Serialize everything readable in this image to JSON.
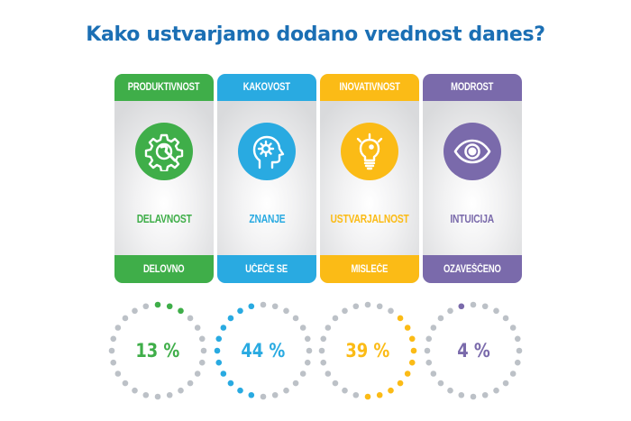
{
  "title": "Kako ustvarjamo dodano vrednost danes?",
  "colors": {
    "title": "#1b6fb4",
    "inactive_dot": "#bcc1c7"
  },
  "cards": [
    {
      "header": "PRODUKTIVNOST",
      "icon": "gear-wrench-icon",
      "middle": "DELAVNOST",
      "footer": "DELOVNO",
      "color": "#3fae49",
      "percent_label": "13 %",
      "percent": 13,
      "active_dots": [
        0,
        1,
        2
      ]
    },
    {
      "header": "KAKOVOST",
      "icon": "head-gear-icon",
      "middle": "ZNANJE",
      "footer": "UČEČE SE",
      "color": "#29aae1",
      "percent_label": "44 %",
      "percent": 44,
      "active_dots": [
        13,
        14,
        15,
        16,
        17,
        18,
        19,
        20,
        21,
        22,
        23
      ]
    },
    {
      "header": "INOVATIVNOST",
      "icon": "lightbulb-icon",
      "middle": "USTVARJALNOST",
      "footer": "MISLEČE",
      "color": "#fbbb16",
      "percent_label": "39 %",
      "percent": 39,
      "active_dots": [
        3,
        4,
        5,
        6,
        7,
        8,
        9,
        10,
        11,
        12
      ]
    },
    {
      "header": "MODROST",
      "icon": "eye-icon",
      "middle": "INTUICIJA",
      "footer": "OZAVEŠČENO",
      "color": "#7a6aab",
      "percent_label": "4 %",
      "percent": 4,
      "active_dots": [
        23
      ]
    }
  ],
  "chart_data": {
    "type": "pie",
    "title": "Kako ustvarjamo dodano vrednost danes?",
    "categories": [
      "PRODUKTIVNOST",
      "KAKOVOST",
      "INOVATIVNOST",
      "MODROST"
    ],
    "values": [
      13,
      44,
      39,
      4
    ],
    "unit": "%"
  }
}
